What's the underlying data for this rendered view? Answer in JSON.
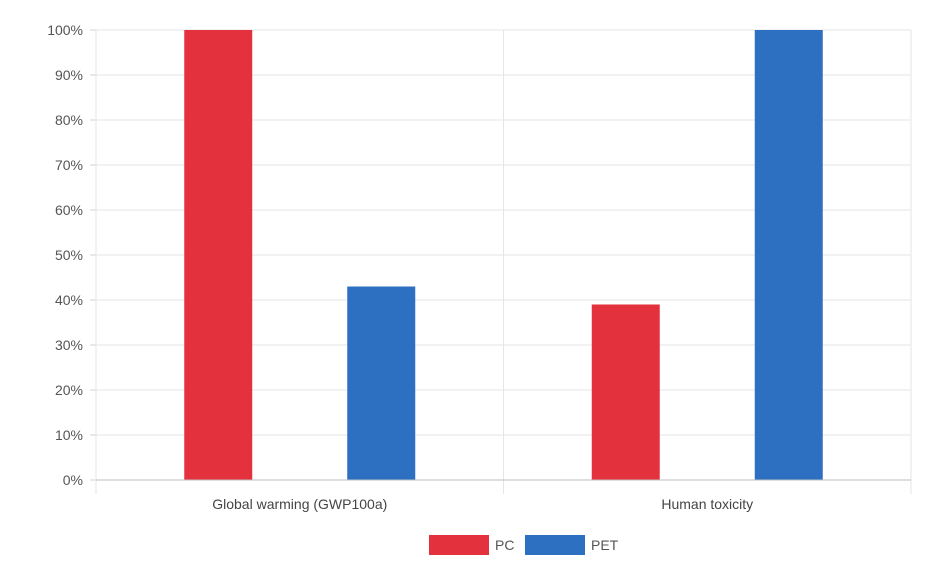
{
  "chart_data": {
    "type": "bar",
    "categories": [
      "Global warming (GWP100a)",
      "Human toxicity"
    ],
    "series": [
      {
        "name": "PC",
        "values": [
          100,
          39
        ],
        "color": "#e3323d"
      },
      {
        "name": "PET",
        "values": [
          43,
          100
        ],
        "color": "#2d6fc0"
      }
    ],
    "ylim": [
      0,
      100
    ],
    "yticks": [
      "0%",
      "10%",
      "20%",
      "30%",
      "40%",
      "50%",
      "60%",
      "70%",
      "80%",
      "90%",
      "100%"
    ],
    "grid": true,
    "legend": "bottom-center"
  }
}
